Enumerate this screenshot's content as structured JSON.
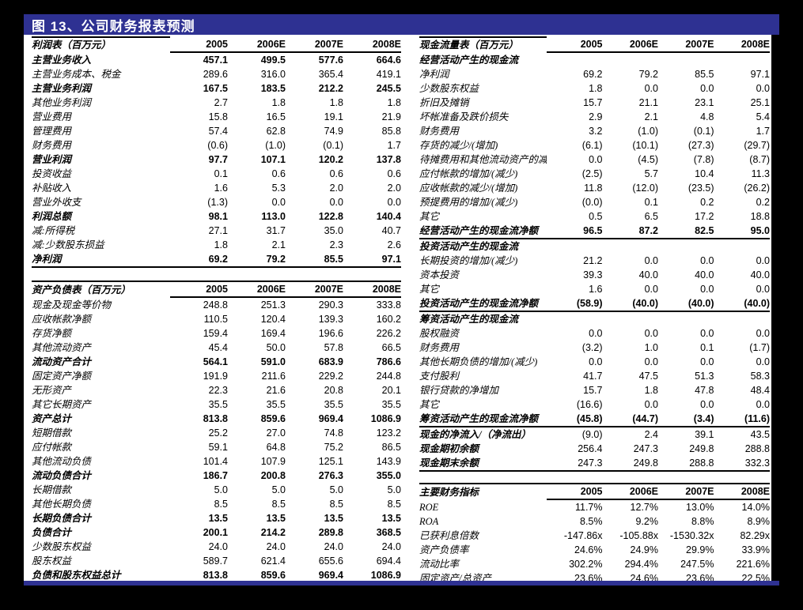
{
  "title": "图 13、公司财务报表预测",
  "colors": {
    "navy": "#2e3192",
    "background": "#000000",
    "paper": "#ffffff"
  },
  "tables": {
    "income_statement": {
      "title": "利润表（百万元）",
      "columns": [
        "2005",
        "2006E",
        "2007E",
        "2008E"
      ],
      "header_top": "label",
      "rows": [
        {
          "label": "主营业务收入",
          "values": [
            "457.1",
            "499.5",
            "577.6",
            "664.6"
          ],
          "bold": true
        },
        {
          "label": "主营业务成本、税金",
          "values": [
            "289.6",
            "316.0",
            "365.4",
            "419.1"
          ]
        },
        {
          "label": "主营业务利润",
          "values": [
            "167.5",
            "183.5",
            "212.2",
            "245.5"
          ],
          "bold": true
        },
        {
          "label": "其他业务利润",
          "values": [
            "2.7",
            "1.8",
            "1.8",
            "1.8"
          ]
        },
        {
          "label": "营业费用",
          "values": [
            "15.8",
            "16.5",
            "19.1",
            "21.9"
          ]
        },
        {
          "label": "管理费用",
          "values": [
            "57.4",
            "62.8",
            "74.9",
            "85.8"
          ]
        },
        {
          "label": "财务费用",
          "values": [
            "(0.6)",
            "(1.0)",
            "(0.1)",
            "1.7"
          ]
        },
        {
          "label": "营业利润",
          "values": [
            "97.7",
            "107.1",
            "120.2",
            "137.8"
          ],
          "bold": true
        },
        {
          "label": "投资收益",
          "values": [
            "0.1",
            "0.6",
            "0.6",
            "0.6"
          ]
        },
        {
          "label": "补贴收入",
          "values": [
            "1.6",
            "5.3",
            "2.0",
            "2.0"
          ]
        },
        {
          "label": "营业外收支",
          "values": [
            "(1.3)",
            "0.0",
            "0.0",
            "0.0"
          ]
        },
        {
          "label": "利润总额",
          "values": [
            "98.1",
            "113.0",
            "122.8",
            "140.4"
          ],
          "bold": true
        },
        {
          "label": "减:所得税",
          "values": [
            "27.1",
            "31.7",
            "35.0",
            "40.7"
          ]
        },
        {
          "label": "减:少数股东损益",
          "values": [
            "1.8",
            "2.1",
            "2.3",
            "2.6"
          ]
        },
        {
          "label": "净利润",
          "values": [
            "69.2",
            "79.2",
            "85.5",
            "97.1"
          ],
          "bold": true,
          "line": true
        }
      ]
    },
    "balance_sheet": {
      "title": "资产负债表（百万元）",
      "columns": [
        "2005",
        "2006E",
        "2007E",
        "2008E"
      ],
      "header_top": "full",
      "rows": [
        {
          "label": "现金及现金等价物",
          "values": [
            "248.8",
            "251.3",
            "290.3",
            "333.8"
          ]
        },
        {
          "label": "应收帐款净额",
          "values": [
            "110.5",
            "120.4",
            "139.3",
            "160.2"
          ]
        },
        {
          "label": "存货净额",
          "values": [
            "159.4",
            "169.4",
            "196.6",
            "226.2"
          ]
        },
        {
          "label": "其他流动资产",
          "values": [
            "45.4",
            "50.0",
            "57.8",
            "66.5"
          ]
        },
        {
          "label": "流动资产合计",
          "values": [
            "564.1",
            "591.0",
            "683.9",
            "786.6"
          ],
          "bold": true
        },
        {
          "label": "固定资产净额",
          "values": [
            "191.9",
            "211.6",
            "229.2",
            "244.8"
          ]
        },
        {
          "label": "无形资产",
          "values": [
            "22.3",
            "21.6",
            "20.8",
            "20.1"
          ]
        },
        {
          "label": "其它长期资产",
          "values": [
            "35.5",
            "35.5",
            "35.5",
            "35.5"
          ]
        },
        {
          "label": "资产总计",
          "values": [
            "813.8",
            "859.6",
            "969.4",
            "1086.9"
          ],
          "bold": true
        },
        {
          "label": "短期借款",
          "values": [
            "25.2",
            "27.0",
            "74.8",
            "123.2"
          ]
        },
        {
          "label": "应付帐款",
          "values": [
            "59.1",
            "64.8",
            "75.2",
            "86.5"
          ]
        },
        {
          "label": "其他流动负债",
          "values": [
            "101.4",
            "107.9",
            "125.1",
            "143.9"
          ]
        },
        {
          "label": "流动负债合计",
          "values": [
            "186.7",
            "200.8",
            "276.3",
            "355.0"
          ],
          "bold": true
        },
        {
          "label": "长期借款",
          "values": [
            "5.0",
            "5.0",
            "5.0",
            "5.0"
          ]
        },
        {
          "label": "其他长期负债",
          "values": [
            "8.5",
            "8.5",
            "8.5",
            "8.5"
          ]
        },
        {
          "label": "长期负债合计",
          "values": [
            "13.5",
            "13.5",
            "13.5",
            "13.5"
          ],
          "bold": true
        },
        {
          "label": "负债合计",
          "values": [
            "200.1",
            "214.2",
            "289.8",
            "368.5"
          ],
          "bold": true
        },
        {
          "label": "少数股东权益",
          "values": [
            "24.0",
            "24.0",
            "24.0",
            "24.0"
          ]
        },
        {
          "label": "股东权益",
          "values": [
            "589.7",
            "621.4",
            "655.6",
            "694.4"
          ]
        },
        {
          "label": "负债和股东权益总计",
          "values": [
            "813.8",
            "859.6",
            "969.4",
            "1086.9"
          ],
          "bold": true,
          "line": true
        }
      ]
    },
    "cash_flow": {
      "title": "现金流量表（百万元）",
      "columns": [
        "2005",
        "2006E",
        "2007E",
        "2008E"
      ],
      "header_top": "label",
      "rows": [
        {
          "label": "经营活动产生的现金流",
          "values": [],
          "section": true
        },
        {
          "label": "净利润",
          "values": [
            "69.2",
            "79.2",
            "85.5",
            "97.1"
          ]
        },
        {
          "label": "少数股东权益",
          "values": [
            "1.8",
            "0.0",
            "0.0",
            "0.0"
          ]
        },
        {
          "label": "折旧及摊销",
          "values": [
            "15.7",
            "21.1",
            "23.1",
            "25.1"
          ]
        },
        {
          "label": "坏帐准备及跌价损失",
          "values": [
            "2.9",
            "2.1",
            "4.8",
            "5.4"
          ]
        },
        {
          "label": "财务费用",
          "values": [
            "3.2",
            "(1.0)",
            "(0.1)",
            "1.7"
          ]
        },
        {
          "label": "存货的减少/(增加)",
          "values": [
            "(6.1)",
            "(10.1)",
            "(27.3)",
            "(29.7)"
          ]
        },
        {
          "label": "待摊费用和其他流动资产的减少",
          "values": [
            "0.0",
            "(4.5)",
            "(7.8)",
            "(8.7)"
          ]
        },
        {
          "label": "应付帐款的增加/(减少)",
          "values": [
            "(2.5)",
            "5.7",
            "10.4",
            "11.3"
          ]
        },
        {
          "label": "应收帐款的减少/(增加)",
          "values": [
            "11.8",
            "(12.0)",
            "(23.5)",
            "(26.2)"
          ]
        },
        {
          "label": "预提费用的增加/(减少)",
          "values": [
            "(0.0)",
            "0.1",
            "0.2",
            "0.2"
          ]
        },
        {
          "label": "其它",
          "values": [
            "0.5",
            "6.5",
            "17.2",
            "18.8"
          ]
        },
        {
          "label": "经营活动产生的现金流净额",
          "values": [
            "96.5",
            "87.2",
            "82.5",
            "95.0"
          ],
          "bold": true,
          "line": true
        },
        {
          "label": "投资活动产生的现金流",
          "values": [],
          "section": true
        },
        {
          "label": "长期投资的增加/(减少)",
          "values": [
            "21.2",
            "0.0",
            "0.0",
            "0.0"
          ]
        },
        {
          "label": "资本投资",
          "values": [
            "39.3",
            "40.0",
            "40.0",
            "40.0"
          ]
        },
        {
          "label": "其它",
          "values": [
            "1.6",
            "0.0",
            "0.0",
            "0.0"
          ]
        },
        {
          "label": "投资活动产生的现金流净额",
          "values": [
            "(58.9)",
            "(40.0)",
            "(40.0)",
            "(40.0)"
          ],
          "bold": true,
          "line": true
        },
        {
          "label": "筹资活动产生的现金流",
          "values": [],
          "section": true
        },
        {
          "label": "股权融资",
          "values": [
            "0.0",
            "0.0",
            "0.0",
            "0.0"
          ]
        },
        {
          "label": "财务费用",
          "values": [
            "(3.2)",
            "1.0",
            "0.1",
            "(1.7)"
          ]
        },
        {
          "label": "其他长期负债的增加/(减少)",
          "values": [
            "0.0",
            "0.0",
            "0.0",
            "0.0"
          ]
        },
        {
          "label": "支付股利",
          "values": [
            "41.7",
            "47.5",
            "51.3",
            "58.3"
          ]
        },
        {
          "label": "银行贷款的净增加",
          "values": [
            "15.7",
            "1.8",
            "47.8",
            "48.4"
          ]
        },
        {
          "label": "其它",
          "values": [
            "(16.6)",
            "0.0",
            "0.0",
            "0.0"
          ]
        },
        {
          "label": "筹资活动产生的现金流净额",
          "values": [
            "(45.8)",
            "(44.7)",
            "(3.4)",
            "(11.6)"
          ],
          "bold": true,
          "line": true
        },
        {
          "label": "现金的净流入/（净流出）",
          "values": [
            "(9.0)",
            "2.4",
            "39.1",
            "43.5"
          ],
          "bold_label": true
        },
        {
          "label": "现金期初余额",
          "values": [
            "256.4",
            "247.3",
            "249.8",
            "288.8"
          ],
          "bold_label": true
        },
        {
          "label": "现金期末余额",
          "values": [
            "247.3",
            "249.8",
            "288.8",
            "332.3"
          ],
          "bold_label": true,
          "line": true
        }
      ]
    },
    "key_ratios": {
      "title": "主要财务指标",
      "columns": [
        "2005",
        "2006E",
        "2007E",
        "2008E"
      ],
      "header_top": "full",
      "rows": [
        {
          "label": "ROE",
          "values": [
            "11.7%",
            "12.7%",
            "13.0%",
            "14.0%"
          ]
        },
        {
          "label": "ROA",
          "values": [
            "8.5%",
            "9.2%",
            "8.8%",
            "8.9%"
          ]
        },
        {
          "label": "已获利息倍数",
          "values": [
            "-147.86x",
            "-105.88x",
            "-1530.32x",
            "82.29x"
          ]
        },
        {
          "label": "资产负债率",
          "values": [
            "24.6%",
            "24.9%",
            "29.9%",
            "33.9%"
          ]
        },
        {
          "label": "流动比率",
          "values": [
            "302.2%",
            "294.4%",
            "247.5%",
            "221.6%"
          ]
        },
        {
          "label": "固定资产/总资产",
          "values": [
            "23.6%",
            "24.6%",
            "23.6%",
            "22.5%"
          ],
          "line": true
        }
      ]
    }
  }
}
